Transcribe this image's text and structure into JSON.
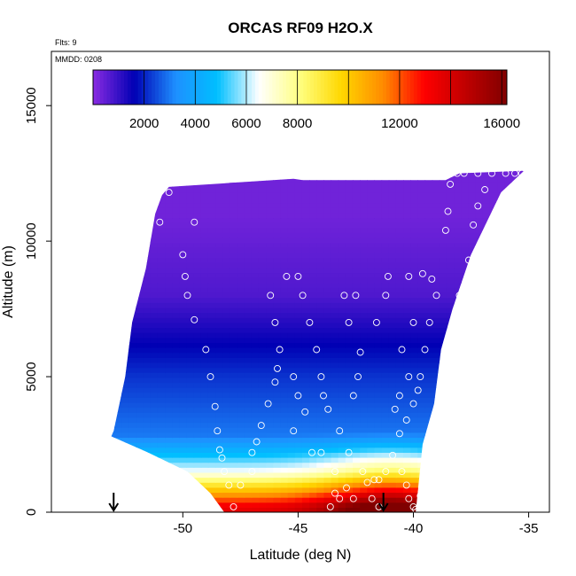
{
  "chart_data": {
    "type": "heatmap",
    "title": "ORCAS RF09 H2O.X",
    "annotations": {
      "flights": "Flts: 9",
      "date": "MMDD: 0208"
    },
    "xlabel": "Latitude (deg N)",
    "ylabel": "Altitude (m)",
    "xlim": [
      -55.7,
      -34.1
    ],
    "ylim": [
      0,
      17000
    ],
    "x_ticks": [
      -50,
      -45,
      -40,
      -35
    ],
    "x_tick_labels": [
      "-50",
      "-45",
      "-40",
      "-35"
    ],
    "y_ticks": [
      0,
      5000,
      10000,
      15000
    ],
    "y_tick_labels": [
      "0",
      "5000",
      "10000",
      "15000"
    ],
    "grid": false,
    "colorbar": {
      "position": "top-inside",
      "range": [
        0,
        16200
      ],
      "tick_values": [
        2000,
        4000,
        6000,
        8000,
        12000,
        16000
      ],
      "tick_labels": [
        "2000",
        "4000",
        "6000",
        "8000",
        "12000",
        "16000"
      ],
      "colors": [
        "#8a2be2",
        "#0000b4",
        "#1e90ff",
        "#00bfff",
        "#ffffff",
        "#ffff80",
        "#ffd700",
        "#ff8c00",
        "#ff0000",
        "#c00000",
        "#800000"
      ]
    },
    "domain_edges": {
      "left": [
        [
          -53.0,
          3000
        ],
        [
          -52.5,
          5000
        ],
        [
          -52.2,
          7000
        ],
        [
          -51.6,
          9000
        ],
        [
          -51.2,
          11000
        ],
        [
          -50.9,
          11700
        ],
        [
          -50.6,
          12000
        ]
      ],
      "top": [
        [
          -50.6,
          12200
        ],
        [
          -45.2,
          12300
        ],
        [
          -44.8,
          12250
        ],
        [
          -38.6,
          12250
        ],
        [
          -38.0,
          12500
        ],
        [
          -35.2,
          12600
        ]
      ],
      "right": [
        [
          -35.2,
          12600
        ],
        [
          -36.2,
          11800
        ],
        [
          -37.5,
          9500
        ],
        [
          -38.3,
          7500
        ],
        [
          -38.8,
          6000
        ],
        [
          -39.1,
          4000
        ],
        [
          -39.6,
          2500
        ],
        [
          -39.9,
          0
        ]
      ],
      "bottom": [
        [
          -39.9,
          0
        ],
        [
          -48.2,
          0
        ],
        [
          -48.8,
          700
        ],
        [
          -49.8,
          1500
        ],
        [
          -51.5,
          2200
        ],
        [
          -53.1,
          2800
        ]
      ]
    },
    "field_description_levels": [
      {
        "alt": 200,
        "value": 13500
      },
      {
        "alt": 1500,
        "value": 6500
      },
      {
        "alt": 2800,
        "value": 3000
      },
      {
        "alt": 5000,
        "value": 2200
      },
      {
        "alt": 8000,
        "value": 700
      },
      {
        "alt": 11000,
        "value": 300
      }
    ],
    "markers": [
      {
        "label": "arrow",
        "x": -53.0
      },
      {
        "label": "arrow",
        "x": -41.3
      }
    ],
    "sample_points": [
      [
        -51.2,
        12000
      ],
      [
        -50.9,
        12100
      ],
      [
        -50.6,
        11800
      ],
      [
        -49.5,
        10700
      ],
      [
        -51.0,
        10700
      ],
      [
        -51.8,
        9200
      ],
      [
        -52.2,
        8000
      ],
      [
        -52.6,
        7000
      ],
      [
        -52.9,
        6000
      ],
      [
        -53.2,
        4900
      ],
      [
        -53.3,
        4000
      ],
      [
        -53.5,
        3300
      ],
      [
        -50.0,
        9500
      ],
      [
        -49.9,
        8700
      ],
      [
        -49.8,
        8000
      ],
      [
        -49.5,
        7100
      ],
      [
        -49.0,
        6000
      ],
      [
        -48.8,
        5000
      ],
      [
        -48.6,
        3900
      ],
      [
        -48.5,
        3000
      ],
      [
        -48.4,
        2300
      ],
      [
        -48.3,
        2000
      ],
      [
        -48.2,
        1500
      ],
      [
        -48.0,
        1000
      ],
      [
        -47.8,
        200
      ],
      [
        -47.5,
        1000
      ],
      [
        -47.0,
        1500
      ],
      [
        -47.0,
        2200
      ],
      [
        -46.8,
        2600
      ],
      [
        -46.6,
        3200
      ],
      [
        -46.3,
        4000
      ],
      [
        -46.0,
        4800
      ],
      [
        -45.9,
        5300
      ],
      [
        -45.8,
        6000
      ],
      [
        -46.0,
        7000
      ],
      [
        -46.2,
        8000
      ],
      [
        -45.5,
        8700
      ],
      [
        -45.0,
        8700
      ],
      [
        -44.8,
        8000
      ],
      [
        -44.5,
        7000
      ],
      [
        -44.2,
        6000
      ],
      [
        -44.0,
        5000
      ],
      [
        -43.9,
        4300
      ],
      [
        -43.7,
        3800
      ],
      [
        -43.2,
        3000
      ],
      [
        -42.8,
        2200
      ],
      [
        -42.2,
        1500
      ],
      [
        -42.0,
        1100
      ],
      [
        -41.8,
        500
      ],
      [
        -41.5,
        200
      ],
      [
        -41.5,
        1200
      ],
      [
        -41.2,
        1500
      ],
      [
        -40.9,
        2100
      ],
      [
        -40.6,
        2900
      ],
      [
        -40.3,
        3400
      ],
      [
        -40.0,
        4000
      ],
      [
        -39.8,
        4500
      ],
      [
        -39.7,
        5000
      ],
      [
        -39.5,
        6000
      ],
      [
        -39.3,
        7000
      ],
      [
        -39.0,
        8000
      ],
      [
        -39.2,
        8600
      ],
      [
        -39.6,
        8800
      ],
      [
        -40.2,
        8700
      ],
      [
        -40.0,
        7000
      ],
      [
        -40.5,
        6000
      ],
      [
        -40.2,
        5000
      ],
      [
        -40.6,
        4300
      ],
      [
        -40.8,
        3800
      ],
      [
        -40.5,
        1500
      ],
      [
        -40.3,
        1000
      ],
      [
        -40.2,
        500
      ],
      [
        -40.0,
        200
      ],
      [
        -39.9,
        100
      ],
      [
        -39.7,
        600
      ],
      [
        -39.6,
        900
      ],
      [
        -39.5,
        1500
      ],
      [
        -39.4,
        2100
      ],
      [
        -39.0,
        3000
      ],
      [
        -38.9,
        4000
      ],
      [
        -38.7,
        5000
      ],
      [
        -38.6,
        5600
      ],
      [
        -38.5,
        6100
      ],
      [
        -38.3,
        7000
      ],
      [
        -38.0,
        8000
      ],
      [
        -37.6,
        9300
      ],
      [
        -38.6,
        10400
      ],
      [
        -38.5,
        11100
      ],
      [
        -37.4,
        10600
      ],
      [
        -37.2,
        11300
      ],
      [
        -36.9,
        11900
      ],
      [
        -38.4,
        12100
      ],
      [
        -37.8,
        12500
      ],
      [
        -37.2,
        12500
      ],
      [
        -36.6,
        12500
      ],
      [
        -36.0,
        12500
      ],
      [
        -35.6,
        12500
      ],
      [
        -35.3,
        12500
      ],
      [
        -35.0,
        12500
      ],
      [
        -38.1,
        12500
      ],
      [
        -42.6,
        500
      ],
      [
        -42.9,
        900
      ],
      [
        -43.2,
        500
      ],
      [
        -43.4,
        1500
      ],
      [
        -43.6,
        200
      ],
      [
        -43.4,
        700
      ],
      [
        -44.4,
        2200
      ],
      [
        -45.2,
        3000
      ],
      [
        -44.7,
        3700
      ],
      [
        -45.0,
        4300
      ],
      [
        -45.2,
        5000
      ],
      [
        -44.0,
        2200
      ],
      [
        -42.6,
        4300
      ],
      [
        -42.4,
        5000
      ],
      [
        -42.3,
        5900
      ],
      [
        -42.8,
        7000
      ],
      [
        -42.5,
        8000
      ],
      [
        -41.6,
        7000
      ],
      [
        -41.2,
        8000
      ],
      [
        -41.1,
        8700
      ],
      [
        -43.0,
        8000
      ],
      [
        -41.7,
        1200
      ]
    ]
  }
}
